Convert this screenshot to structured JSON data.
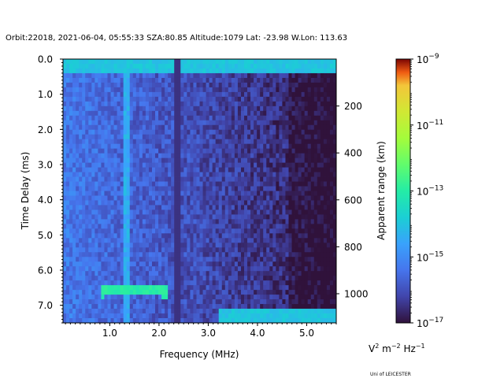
{
  "chart_data": {
    "type": "heatmap",
    "title": "Orbit:22018, 2021-06-04, 05:55:33 SZA:80.85 Altitude:1079 Lat: -23.98 W.Lon: 113.63",
    "xlabel": "Frequency (MHz)",
    "ylabel": "Time Delay (ms)",
    "y2label": "Apparent range (km)",
    "xlim": [
      0.05,
      5.6
    ],
    "ylim": [
      7.5,
      0.0
    ],
    "x_ticks": [
      1.0,
      2.0,
      3.0,
      4.0,
      5.0
    ],
    "x_tick_labels": [
      "1.0",
      "2.0",
      "3.0",
      "4.0",
      "5.0"
    ],
    "y_ticks": [
      0.0,
      1.0,
      2.0,
      3.0,
      4.0,
      5.0,
      6.0,
      7.0
    ],
    "y_tick_labels": [
      "0.0",
      "1.0",
      "2.0",
      "3.0",
      "4.0",
      "5.0",
      "6.0",
      "7.0"
    ],
    "y2_ticks_km": [
      200,
      400,
      600,
      800,
      1000
    ],
    "y2_tick_labels": [
      "200",
      "400",
      "600",
      "800",
      "1000"
    ],
    "km_per_ms": 149.9,
    "colorbar": {
      "scale": "log",
      "range": [
        1e-17,
        1e-09
      ],
      "ticks_exp": [
        -17,
        -15,
        -13,
        -11,
        -9
      ],
      "tick_base": "10",
      "tick_labels_exp": [
        "−17",
        "−15",
        "−13",
        "−11",
        "−9"
      ],
      "units_prefix": "V",
      "units_exp1": "2",
      "units_mid": " m",
      "units_exp2": "−2",
      "units_suffix": " Hz",
      "units_exp3": "−1",
      "colormap": "turbo"
    },
    "features": [
      {
        "name": "surface reflection",
        "freq_range_mhz": [
          0.8,
          2.2
        ],
        "delay_ms": 6.65,
        "level": 1e-13
      },
      {
        "name": "surface reflection high freq",
        "freq_range_mhz": [
          3.2,
          5.6
        ],
        "delay_ms": 7.3,
        "level": 1e-14
      },
      {
        "name": "transmission pulse",
        "freq_range_mhz": [
          0.05,
          5.6
        ],
        "delay_ms": 0.2,
        "level": 1e-14
      },
      {
        "name": "local noise line 1",
        "freq_mhz": 1.35,
        "level": 1e-14
      },
      {
        "name": "local noise line 2",
        "freq_mhz": 2.38,
        "level": 1e-16
      }
    ]
  },
  "credit": "Uni of LEICESTER"
}
